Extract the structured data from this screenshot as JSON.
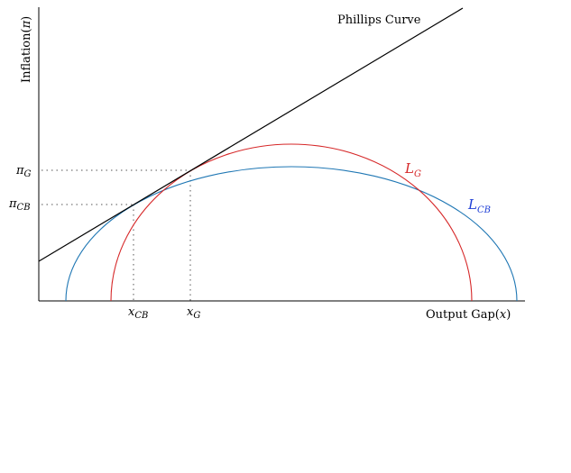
{
  "figure": {
    "y_axis_label": {
      "text": "Inflation(",
      "symbol": "π",
      "close": ")"
    },
    "x_axis_label": {
      "text": "Output Gap(",
      "symbol": "x",
      "close": ")"
    },
    "phillips_curve_label": "Phillips Curve",
    "curves": [
      {
        "name": "L",
        "sub": "G",
        "color": "#d62728"
      },
      {
        "name": "L",
        "sub": "CB",
        "color": "#1f77b4"
      }
    ],
    "y_ticks": [
      {
        "base": "π",
        "sub": "G"
      },
      {
        "base": "π",
        "sub": "CB"
      }
    ],
    "x_ticks": [
      {
        "base": "x",
        "sub": "CB"
      },
      {
        "base": "x",
        "sub": "G"
      }
    ],
    "line_color": "#000000",
    "guide_color": "#555555"
  }
}
